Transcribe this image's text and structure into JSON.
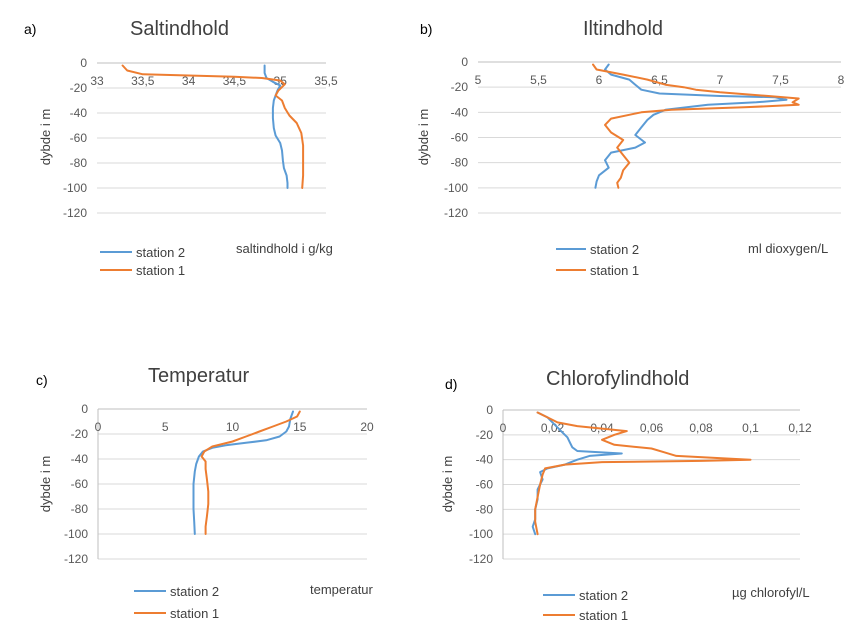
{
  "figure": {
    "colors": {
      "station2": "#5B9BD5",
      "station1": "#ED7D31"
    }
  },
  "chart_data": [
    {
      "type": "line",
      "panel": "a)",
      "title": "Saltindhold",
      "xlabel": "saltindhold i g/kg",
      "ylabel": "dybde i m",
      "xlim": [
        33,
        35.5
      ],
      "ylim": [
        -120,
        0
      ],
      "x_ticks": [
        33,
        33.5,
        34,
        34.5,
        35,
        35.5
      ],
      "x_tick_labels": [
        "33",
        "33,5",
        "34",
        "34,5",
        "35",
        "35,5"
      ],
      "y_ticks": [
        0,
        -20,
        -40,
        -60,
        -80,
        -100,
        -120
      ],
      "y_tick_labels": [
        "0",
        "-20",
        "-40",
        "-60",
        "-80",
        "-100",
        "-120"
      ],
      "series": [
        {
          "name": "station 2",
          "color": "#5B9BD5",
          "points": [
            [
              34.83,
              -2
            ],
            [
              34.83,
              -8
            ],
            [
              34.85,
              -12
            ],
            [
              34.92,
              -15
            ],
            [
              35.0,
              -18
            ],
            [
              34.97,
              -22
            ],
            [
              34.95,
              -26
            ],
            [
              34.93,
              -30
            ],
            [
              34.92,
              -36
            ],
            [
              34.92,
              -44
            ],
            [
              34.93,
              -52
            ],
            [
              34.95,
              -58
            ],
            [
              35.0,
              -64
            ],
            [
              35.02,
              -70
            ],
            [
              35.03,
              -78
            ],
            [
              35.04,
              -84
            ],
            [
              35.07,
              -90
            ],
            [
              35.08,
              -96
            ],
            [
              35.08,
              -100
            ]
          ]
        },
        {
          "name": "station 1",
          "color": "#ED7D31",
          "points": [
            [
              33.28,
              -2
            ],
            [
              33.33,
              -6
            ],
            [
              33.5,
              -9
            ],
            [
              34.0,
              -10
            ],
            [
              34.5,
              -11
            ],
            [
              34.8,
              -12
            ],
            [
              35.0,
              -14
            ],
            [
              35.05,
              -17
            ],
            [
              34.98,
              -22
            ],
            [
              34.95,
              -26
            ],
            [
              35.02,
              -30
            ],
            [
              35.05,
              -36
            ],
            [
              35.1,
              -42
            ],
            [
              35.18,
              -48
            ],
            [
              35.23,
              -56
            ],
            [
              35.25,
              -66
            ],
            [
              35.25,
              -80
            ],
            [
              35.25,
              -90
            ],
            [
              35.24,
              -100
            ]
          ]
        }
      ],
      "legend": [
        "station 2",
        "station 1"
      ],
      "legend_position": "bottom-left"
    },
    {
      "type": "line",
      "panel": "b)",
      "title": "Iltindhold",
      "xlabel": "ml dioxygen/L",
      "ylabel": "dybde i m",
      "xlim": [
        5,
        8
      ],
      "ylim": [
        -120,
        0
      ],
      "x_ticks": [
        5,
        5.5,
        6,
        6.5,
        7,
        7.5,
        8
      ],
      "x_tick_labels": [
        "5",
        "5,5",
        "6",
        "6,5",
        "7",
        "7,5",
        "8"
      ],
      "y_ticks": [
        0,
        -20,
        -40,
        -60,
        -80,
        -100,
        -120
      ],
      "y_tick_labels": [
        "0",
        "-20",
        "-40",
        "-60",
        "-80",
        "-100",
        "-120"
      ],
      "series": [
        {
          "name": "station 2",
          "color": "#5B9BD5",
          "points": [
            [
              6.08,
              -2
            ],
            [
              6.05,
              -6
            ],
            [
              6.1,
              -10
            ],
            [
              6.25,
              -14
            ],
            [
              6.3,
              -18
            ],
            [
              6.35,
              -22
            ],
            [
              6.5,
              -25
            ],
            [
              7.0,
              -27
            ],
            [
              7.45,
              -28
            ],
            [
              7.55,
              -30
            ],
            [
              7.3,
              -32
            ],
            [
              6.9,
              -34
            ],
            [
              6.55,
              -38
            ],
            [
              6.45,
              -42
            ],
            [
              6.4,
              -46
            ],
            [
              6.35,
              -52
            ],
            [
              6.3,
              -58
            ],
            [
              6.38,
              -64
            ],
            [
              6.3,
              -68
            ],
            [
              6.1,
              -72
            ],
            [
              6.05,
              -78
            ],
            [
              6.08,
              -84
            ],
            [
              6.0,
              -90
            ],
            [
              5.98,
              -95
            ],
            [
              5.97,
              -100
            ]
          ]
        },
        {
          "name": "station 1",
          "color": "#ED7D31",
          "points": [
            [
              5.95,
              -2
            ],
            [
              5.98,
              -6
            ],
            [
              6.2,
              -10
            ],
            [
              6.4,
              -14
            ],
            [
              6.55,
              -18
            ],
            [
              6.7,
              -20
            ],
            [
              6.8,
              -22
            ],
            [
              7.0,
              -24
            ],
            [
              7.4,
              -27
            ],
            [
              7.65,
              -29
            ],
            [
              7.6,
              -32
            ],
            [
              7.65,
              -34
            ],
            [
              7.2,
              -36
            ],
            [
              6.6,
              -38
            ],
            [
              6.35,
              -40
            ],
            [
              6.25,
              -42
            ],
            [
              6.1,
              -45
            ],
            [
              6.05,
              -50
            ],
            [
              6.1,
              -56
            ],
            [
              6.2,
              -62
            ],
            [
              6.15,
              -68
            ],
            [
              6.2,
              -74
            ],
            [
              6.25,
              -80
            ],
            [
              6.2,
              -86
            ],
            [
              6.18,
              -92
            ],
            [
              6.15,
              -96
            ],
            [
              6.16,
              -100
            ]
          ]
        }
      ],
      "legend": [
        "station 2",
        "station 1"
      ],
      "legend_position": "bottom-left"
    },
    {
      "type": "line",
      "panel": "c)",
      "title": "Temperatur",
      "xlabel": "temperatur",
      "ylabel": "dybde i m",
      "xlim": [
        0,
        20
      ],
      "ylim": [
        -120,
        0
      ],
      "x_ticks": [
        0,
        5,
        10,
        15,
        20
      ],
      "x_tick_labels": [
        "0",
        "5",
        "10",
        "15",
        "20"
      ],
      "y_ticks": [
        0,
        -20,
        -40,
        -60,
        -80,
        -100,
        -120
      ],
      "y_tick_labels": [
        "0",
        "-20",
        "-40",
        "-60",
        "-80",
        "-100",
        "-120"
      ],
      "series": [
        {
          "name": "station 2",
          "color": "#5B9BD5",
          "points": [
            [
              14.5,
              -2
            ],
            [
              14.3,
              -8
            ],
            [
              14.2,
              -14
            ],
            [
              14.0,
              -18
            ],
            [
              13.5,
              -22
            ],
            [
              12.5,
              -25
            ],
            [
              11.0,
              -27
            ],
            [
              9.5,
              -29
            ],
            [
              8.5,
              -31
            ],
            [
              7.8,
              -34
            ],
            [
              7.5,
              -38
            ],
            [
              7.3,
              -44
            ],
            [
              7.2,
              -50
            ],
            [
              7.1,
              -60
            ],
            [
              7.1,
              -70
            ],
            [
              7.1,
              -80
            ],
            [
              7.15,
              -90
            ],
            [
              7.2,
              -100
            ]
          ]
        },
        {
          "name": "station 1",
          "color": "#ED7D31",
          "points": [
            [
              15.0,
              -2
            ],
            [
              14.8,
              -6
            ],
            [
              14.0,
              -10
            ],
            [
              13.0,
              -14
            ],
            [
              12.0,
              -18
            ],
            [
              11.0,
              -22
            ],
            [
              10.0,
              -26
            ],
            [
              8.5,
              -30
            ],
            [
              7.9,
              -34
            ],
            [
              7.7,
              -38
            ],
            [
              8.0,
              -42
            ],
            [
              8.0,
              -48
            ],
            [
              8.1,
              -56
            ],
            [
              8.2,
              -66
            ],
            [
              8.2,
              -76
            ],
            [
              8.1,
              -86
            ],
            [
              8.0,
              -94
            ],
            [
              8.0,
              -100
            ]
          ]
        }
      ],
      "legend": [
        "station 2",
        "station 1"
      ],
      "legend_position": "bottom-left"
    },
    {
      "type": "line",
      "panel": "d)",
      "title": "Chlorofylindhold",
      "xlabel": "µg chlorofyl/L",
      "ylabel": "dybde i m",
      "xlim": [
        0,
        0.12
      ],
      "ylim": [
        -120,
        0
      ],
      "x_ticks": [
        0,
        0.02,
        0.04,
        0.06,
        0.08,
        0.1,
        0.12
      ],
      "x_tick_labels": [
        "0",
        "0,02",
        "0,04",
        "0,06",
        "0,08",
        "0,1",
        "0,12"
      ],
      "y_ticks": [
        0,
        -20,
        -40,
        -60,
        -80,
        -100,
        -120
      ],
      "y_tick_labels": [
        "0",
        "-20",
        "-40",
        "-60",
        "-80",
        "-100",
        "-120"
      ],
      "series": [
        {
          "name": "station 2",
          "color": "#5B9BD5",
          "points": [
            [
              0.014,
              -2
            ],
            [
              0.018,
              -6
            ],
            [
              0.02,
              -10
            ],
            [
              0.022,
              -14
            ],
            [
              0.024,
              -18
            ],
            [
              0.026,
              -22
            ],
            [
              0.027,
              -26
            ],
            [
              0.028,
              -30
            ],
            [
              0.03,
              -33
            ],
            [
              0.048,
              -35
            ],
            [
              0.035,
              -37
            ],
            [
              0.03,
              -40
            ],
            [
              0.025,
              -44
            ],
            [
              0.018,
              -47
            ],
            [
              0.015,
              -50
            ],
            [
              0.016,
              -56
            ],
            [
              0.014,
              -64
            ],
            [
              0.014,
              -72
            ],
            [
              0.013,
              -80
            ],
            [
              0.013,
              -88
            ],
            [
              0.012,
              -94
            ],
            [
              0.013,
              -100
            ]
          ]
        },
        {
          "name": "station 1",
          "color": "#ED7D31",
          "points": [
            [
              0.014,
              -2
            ],
            [
              0.018,
              -6
            ],
            [
              0.022,
              -10
            ],
            [
              0.03,
              -13
            ],
            [
              0.04,
              -15
            ],
            [
              0.05,
              -17
            ],
            [
              0.045,
              -20
            ],
            [
              0.04,
              -24
            ],
            [
              0.045,
              -28
            ],
            [
              0.06,
              -31
            ],
            [
              0.065,
              -34
            ],
            [
              0.07,
              -37
            ],
            [
              0.1,
              -40
            ],
            [
              0.08,
              -41
            ],
            [
              0.04,
              -42
            ],
            [
              0.025,
              -44
            ],
            [
              0.017,
              -47
            ],
            [
              0.016,
              -52
            ],
            [
              0.015,
              -60
            ],
            [
              0.014,
              -70
            ],
            [
              0.013,
              -80
            ],
            [
              0.013,
              -90
            ],
            [
              0.014,
              -100
            ]
          ]
        }
      ],
      "legend": [
        "station 2",
        "station 1"
      ],
      "legend_position": "bottom-left"
    }
  ]
}
